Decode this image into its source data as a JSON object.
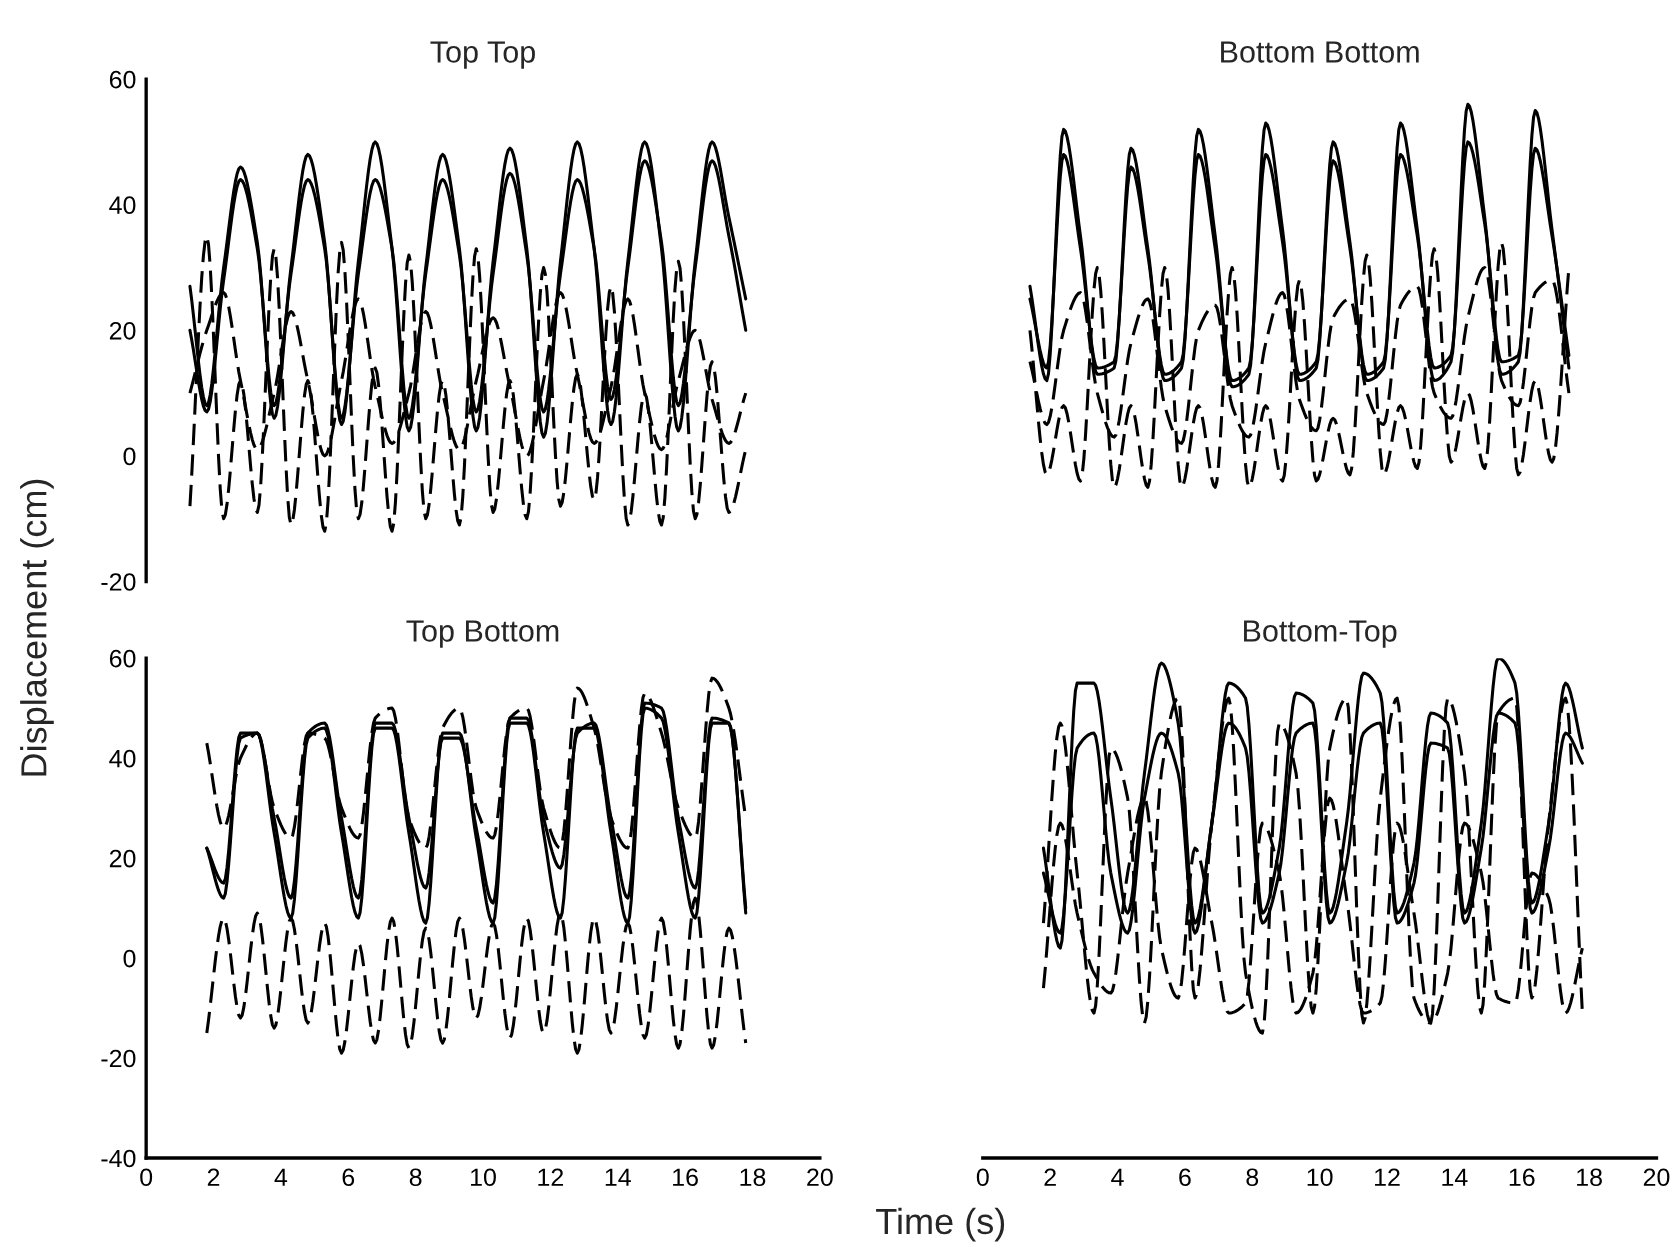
{
  "chart_data": [
    {
      "type": "line",
      "title": "Top Top",
      "ylabel": "Displacement (cm)",
      "tick_labels": "y",
      "xlim": [
        0,
        20
      ],
      "ylim": [
        -20,
        60
      ],
      "yticks": [
        -20,
        0,
        20,
        40,
        60
      ],
      "x": [
        1.3,
        1.8,
        2.3,
        2.8,
        3.3,
        3.8,
        4.3,
        4.8,
        5.3,
        5.8,
        6.3,
        6.8,
        7.3,
        7.8,
        8.3,
        8.8,
        9.3,
        9.8,
        10.3,
        10.8,
        11.3,
        11.8,
        12.3,
        12.8,
        13.3,
        13.8,
        14.3,
        14.8,
        15.3,
        15.8,
        16.3,
        16.8,
        17.3,
        17.8
      ],
      "series": [
        {
          "color": "#000000",
          "line_style": "solid",
          "values": [
            27,
            8,
            30,
            46,
            34,
            6,
            30,
            48,
            34,
            5,
            31,
            50,
            33,
            4,
            30,
            48,
            33,
            4,
            31,
            49,
            33,
            3,
            31,
            50,
            33,
            5,
            31,
            50,
            33,
            4,
            31,
            50,
            38,
            25
          ]
        },
        {
          "color": "#000000",
          "line_style": "solid",
          "values": [
            20,
            7,
            28,
            44,
            33,
            8,
            29,
            44,
            33,
            6,
            29,
            44,
            33,
            6,
            29,
            44,
            32,
            7,
            29,
            45,
            32,
            7,
            29,
            44,
            33,
            9,
            30,
            47,
            34,
            8,
            30,
            47,
            35,
            20
          ]
        },
        {
          "color": "#000000",
          "line_style": "dashed",
          "values": [
            -8,
            35,
            -10,
            12,
            -9,
            33,
            -11,
            12,
            -12,
            34,
            -10,
            14,
            -12,
            32,
            -10,
            12,
            -11,
            33,
            -9,
            12,
            -10,
            30,
            -8,
            13,
            -7,
            27,
            -11,
            10,
            -11,
            31,
            -10,
            15,
            -9,
            1
          ]
        },
        {
          "color": "#000000",
          "line_style": "dashed",
          "values": [
            10,
            20,
            26,
            12,
            1,
            10,
            23,
            12,
            0,
            12,
            25,
            11,
            2,
            10,
            23,
            10,
            1,
            12,
            22,
            11,
            0,
            12,
            26,
            13,
            2,
            11,
            25,
            10,
            1,
            12,
            20,
            9,
            2,
            10
          ]
        }
      ]
    },
    {
      "type": "line",
      "title": "Bottom Bottom",
      "tick_labels": false,
      "xlim": [
        0,
        20
      ],
      "ylim": [
        -20,
        60
      ],
      "x": [
        1.4,
        1.9,
        2.4,
        2.9,
        3.4,
        3.9,
        4.4,
        4.9,
        5.4,
        5.9,
        6.4,
        6.9,
        7.4,
        7.9,
        8.4,
        8.9,
        9.4,
        9.9,
        10.4,
        10.9,
        11.4,
        11.9,
        12.4,
        12.9,
        13.4,
        13.9,
        14.4,
        14.9,
        15.4,
        15.9,
        16.4,
        16.9,
        17.4
      ],
      "series": [
        {
          "color": "#000000",
          "line_style": "solid",
          "values": [
            27,
            12,
            52,
            35,
            13,
            14,
            49,
            33,
            12,
            14,
            52,
            35,
            11,
            13,
            53,
            36,
            12,
            14,
            50,
            34,
            12,
            14,
            53,
            36,
            12,
            15,
            56,
            38,
            13,
            15,
            55,
            36,
            14
          ]
        },
        {
          "color": "#000000",
          "line_style": "solid",
          "values": [
            25,
            14,
            48,
            33,
            14,
            15,
            46,
            32,
            13,
            15,
            48,
            33,
            12,
            14,
            48,
            34,
            13,
            15,
            47,
            33,
            13,
            15,
            48,
            35,
            14,
            16,
            50,
            37,
            15,
            16,
            49,
            35,
            16
          ]
        },
        {
          "color": "#000000",
          "line_style": "dashed",
          "values": [
            20,
            -3,
            8,
            -4,
            30,
            -5,
            8,
            -5,
            30,
            -5,
            8,
            -5,
            30,
            -5,
            8,
            -4,
            28,
            -4,
            6,
            -3,
            32,
            -3,
            8,
            -2,
            33,
            -1,
            10,
            -2,
            34,
            -3,
            12,
            -1,
            30
          ]
        },
        {
          "color": "#000000",
          "line_style": "dashed",
          "values": [
            15,
            5,
            20,
            26,
            10,
            3,
            18,
            25,
            8,
            2,
            20,
            24,
            8,
            3,
            18,
            26,
            9,
            4,
            22,
            25,
            10,
            5,
            24,
            27,
            10,
            6,
            22,
            30,
            12,
            8,
            26,
            28,
            10
          ]
        }
      ]
    },
    {
      "type": "line",
      "title": "Top Bottom",
      "xlabel": "Time (s)",
      "xlim": [
        0,
        20
      ],
      "xticks": [
        0,
        2,
        4,
        6,
        8,
        10,
        12,
        14,
        16,
        18,
        20
      ],
      "ylim": [
        -40,
        60
      ],
      "yticks": [
        -40,
        -20,
        0,
        20,
        40,
        60
      ],
      "x": [
        1.8,
        2.3,
        2.8,
        3.3,
        3.8,
        4.3,
        4.8,
        5.3,
        5.8,
        6.3,
        6.8,
        7.3,
        7.8,
        8.3,
        8.8,
        9.3,
        9.8,
        10.3,
        10.8,
        11.3,
        11.8,
        12.3,
        12.8,
        13.3,
        13.8,
        14.3,
        14.8,
        15.3,
        15.8,
        16.3,
        16.8,
        17.3,
        17.8
      ],
      "series": [
        {
          "color": "#000000",
          "line_style": "solid",
          "values": [
            22,
            12,
            44,
            45,
            25,
            8,
            44,
            46,
            25,
            8,
            46,
            46,
            25,
            7,
            45,
            45,
            24,
            7,
            47,
            47,
            25,
            8,
            46,
            46,
            25,
            7,
            50,
            48,
            25,
            8,
            47,
            47,
            9
          ]
        },
        {
          "color": "#000000",
          "line_style": "solid",
          "values": [
            22,
            15,
            45,
            45,
            28,
            12,
            45,
            47,
            28,
            12,
            47,
            47,
            28,
            14,
            44,
            44,
            26,
            11,
            48,
            48,
            28,
            18,
            45,
            47,
            28,
            12,
            51,
            50,
            28,
            14,
            48,
            47,
            10
          ]
        },
        {
          "color": "#000000",
          "line_style": "dashed",
          "values": [
            43,
            26,
            40,
            45,
            30,
            24,
            45,
            44,
            30,
            24,
            48,
            50,
            28,
            22,
            46,
            50,
            30,
            24,
            48,
            50,
            30,
            22,
            54,
            46,
            28,
            22,
            53,
            45,
            30,
            24,
            56,
            50,
            28
          ]
        },
        {
          "color": "#000000",
          "line_style": "dashed",
          "values": [
            -15,
            8,
            -12,
            9,
            -14,
            8,
            -13,
            7,
            -19,
            3,
            -17,
            8,
            -18,
            6,
            -17,
            8,
            -12,
            7,
            -16,
            8,
            -15,
            9,
            -19,
            8,
            -15,
            7,
            -16,
            8,
            -18,
            12,
            -18,
            6,
            -17
          ]
        }
      ]
    },
    {
      "type": "line",
      "title": "Bottom-Top",
      "tick_labels": "x",
      "xlim": [
        0,
        20
      ],
      "xticks": [
        0,
        2,
        4,
        6,
        8,
        10,
        12,
        14,
        16,
        18,
        20
      ],
      "ylim": [
        -40,
        60
      ],
      "x": [
        1.8,
        2.3,
        2.8,
        3.3,
        3.8,
        4.3,
        4.8,
        5.3,
        5.8,
        6.3,
        6.8,
        7.3,
        7.8,
        8.3,
        8.8,
        9.3,
        9.8,
        10.3,
        10.8,
        11.3,
        11.8,
        12.3,
        12.8,
        13.3,
        13.8,
        14.3,
        14.8,
        15.3,
        15.8,
        16.3,
        16.8,
        17.3,
        17.8
      ],
      "series": [
        {
          "color": "#000000",
          "line_style": "solid",
          "values": [
            22,
            2,
            55,
            55,
            32,
            9,
            37,
            59,
            47,
            7,
            27,
            55,
            52,
            9,
            22,
            53,
            51,
            9,
            27,
            57,
            53,
            9,
            19,
            49,
            47,
            9,
            27,
            60,
            55,
            11,
            27,
            55,
            42
          ]
        },
        {
          "color": "#000000",
          "line_style": "solid",
          "values": [
            17,
            5,
            42,
            45,
            17,
            5,
            32,
            45,
            37,
            5,
            27,
            47,
            42,
            7,
            17,
            45,
            47,
            7,
            19,
            45,
            47,
            7,
            15,
            43,
            42,
            7,
            22,
            49,
            47,
            9,
            22,
            45,
            39
          ]
        },
        {
          "color": "#000000",
          "line_style": "dashed",
          "values": [
            7,
            47,
            17,
            -11,
            42,
            32,
            -13,
            37,
            52,
            -8,
            27,
            52,
            -3,
            -15,
            47,
            37,
            -11,
            42,
            52,
            -13,
            32,
            52,
            -8,
            -13,
            52,
            37,
            -11,
            49,
            52,
            -8,
            27,
            52,
            -11
          ]
        },
        {
          "color": "#000000",
          "line_style": "dashed",
          "values": [
            -6,
            27,
            9,
            -3,
            -7,
            17,
            32,
            2,
            -8,
            22,
            7,
            -11,
            -9,
            27,
            17,
            -11,
            -3,
            32,
            12,
            -11,
            -9,
            27,
            9,
            -13,
            -3,
            27,
            17,
            -8,
            -9,
            17,
            12,
            -11,
            2
          ]
        }
      ]
    }
  ]
}
